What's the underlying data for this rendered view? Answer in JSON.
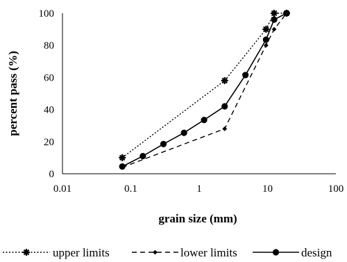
{
  "chart_data": {
    "type": "line",
    "title": "",
    "xlabel": "grain size (mm)",
    "ylabel": "percent pass (%)",
    "x_scale": "log",
    "xlim": [
      0.01,
      100
    ],
    "ylim": [
      0,
      100
    ],
    "x_ticks": [
      "0.01",
      "0.1",
      "1",
      "10",
      "100"
    ],
    "y_ticks": [
      "0",
      "20",
      "40",
      "60",
      "80",
      "100"
    ],
    "grid": false,
    "legend": "bottom",
    "series": [
      {
        "name": "upper limits",
        "style": "dotted",
        "marker": "star",
        "color": "#000000",
        "x": [
          0.075,
          2.36,
          9.5,
          12.5,
          19
        ],
        "y": [
          10,
          58,
          90,
          100,
          100
        ]
      },
      {
        "name": "lower limits",
        "style": "dashed",
        "marker": "diamond",
        "color": "#000000",
        "x": [
          0.075,
          2.36,
          9.5,
          12.5,
          19
        ],
        "y": [
          4,
          28,
          80,
          90,
          100
        ]
      },
      {
        "name": "design",
        "style": "solid",
        "marker": "circle",
        "color": "#000000",
        "x": [
          0.075,
          0.15,
          0.3,
          0.6,
          1.18,
          2.36,
          4.75,
          9.5,
          12.5,
          19
        ],
        "y": [
          4.5,
          11,
          18.5,
          25.5,
          33.5,
          42,
          61.5,
          83.5,
          96,
          100
        ]
      }
    ]
  }
}
